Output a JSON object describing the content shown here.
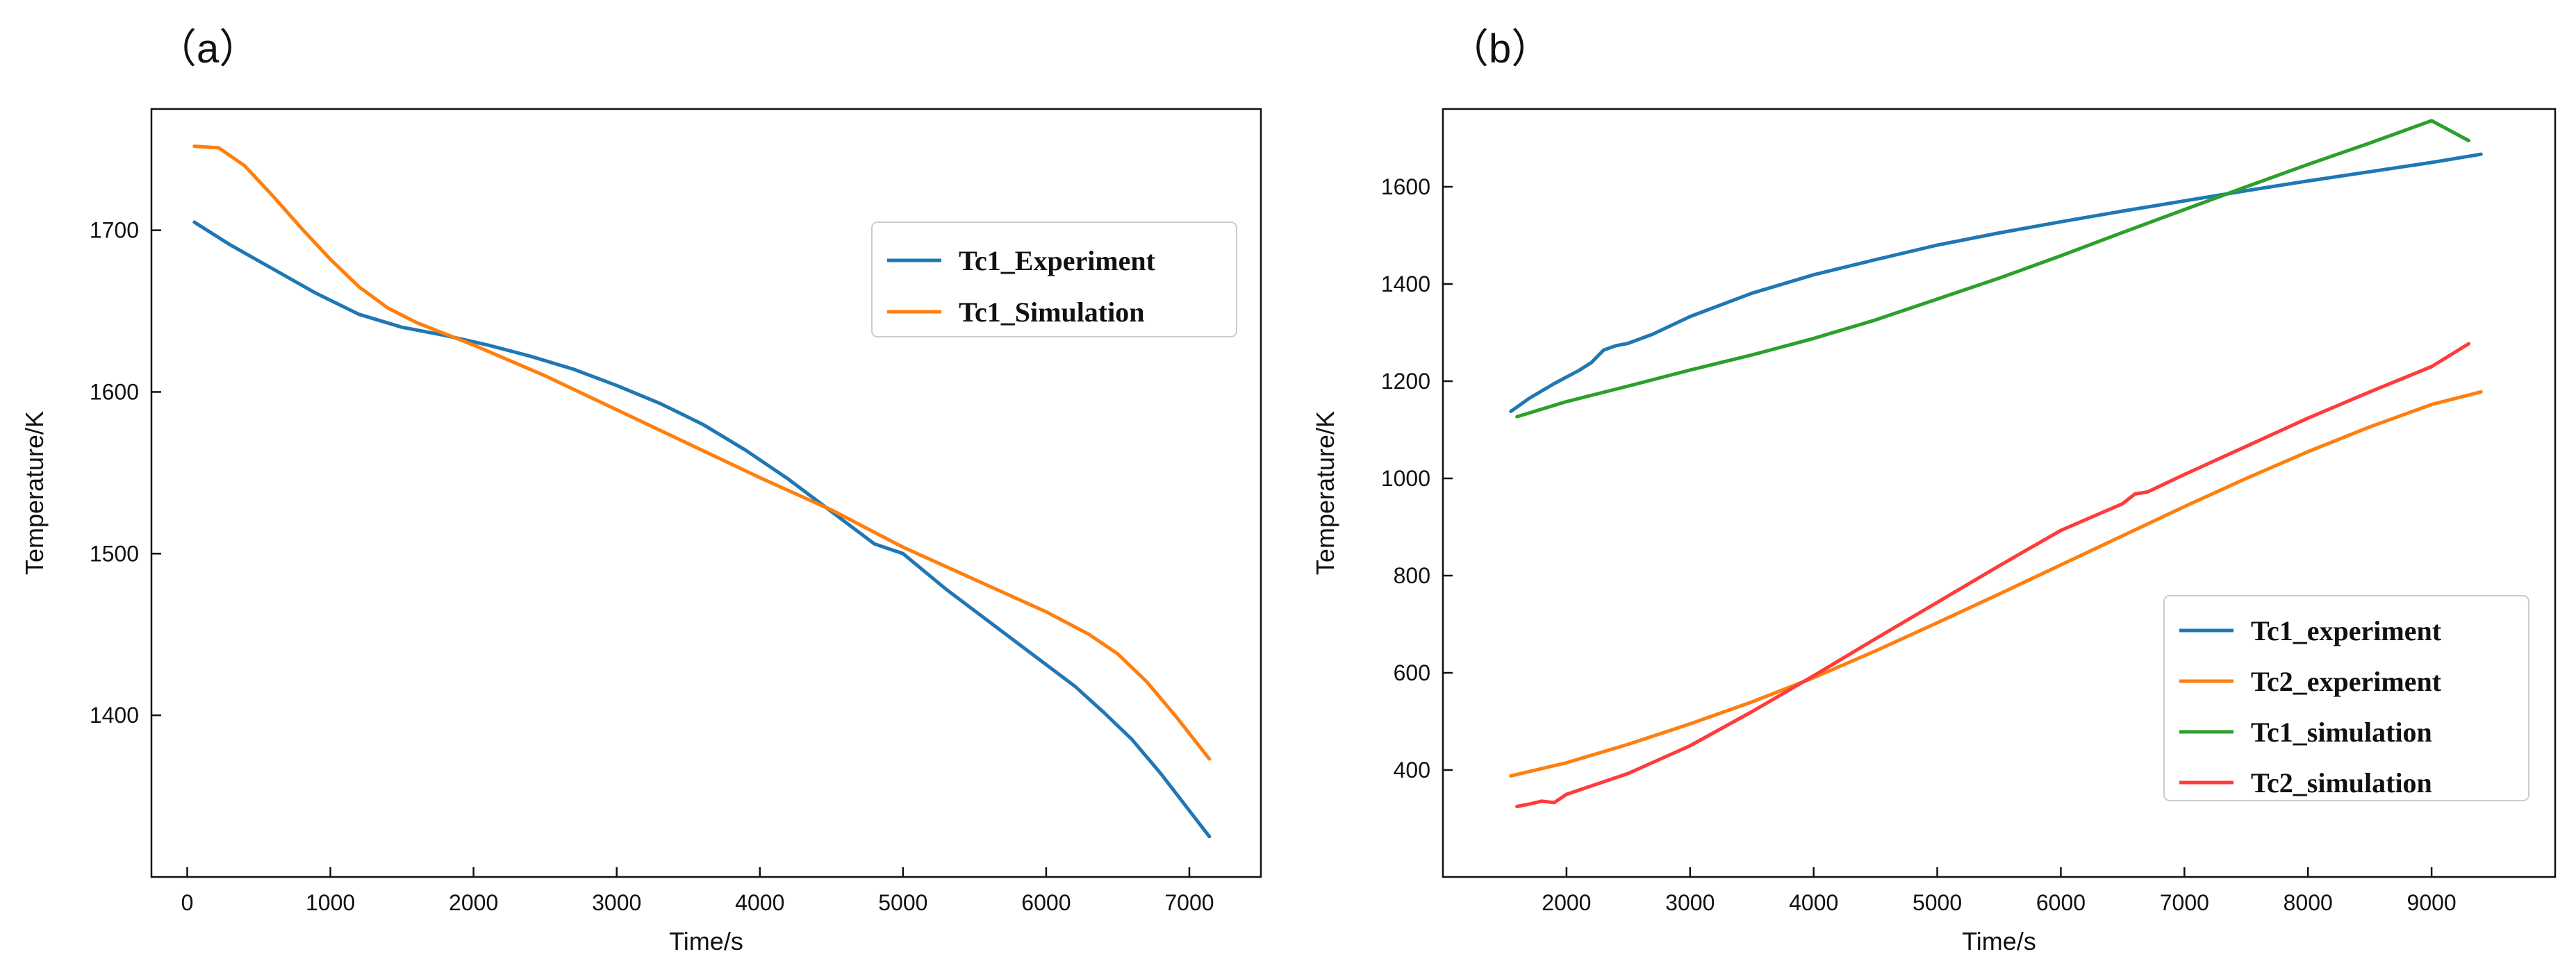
{
  "chart_data": [
    {
      "panel_label": "（a）",
      "type": "line",
      "title": "",
      "xlabel": "Time/s",
      "ylabel": "Temperature/K",
      "xlim": [
        -250,
        7500
      ],
      "ylim": [
        1300,
        1775
      ],
      "xticks": [
        0,
        1000,
        2000,
        3000,
        4000,
        5000,
        6000,
        7000
      ],
      "yticks": [
        1400,
        1500,
        1600,
        1700
      ],
      "legend_position": "upper-right",
      "series": [
        {
          "name": "Tc1_Experiment",
          "color": "#1f77b4",
          "points": [
            [
              50,
              1705
            ],
            [
              300,
              1691
            ],
            [
              600,
              1676
            ],
            [
              900,
              1661
            ],
            [
              1200,
              1648
            ],
            [
              1500,
              1640
            ],
            [
              1800,
              1635
            ],
            [
              2100,
              1629
            ],
            [
              2400,
              1622
            ],
            [
              2700,
              1614
            ],
            [
              3000,
              1604
            ],
            [
              3300,
              1593
            ],
            [
              3600,
              1580
            ],
            [
              3900,
              1564
            ],
            [
              4200,
              1546
            ],
            [
              4500,
              1526
            ],
            [
              4800,
              1506
            ],
            [
              5000,
              1500
            ],
            [
              5300,
              1478
            ],
            [
              5600,
              1458
            ],
            [
              5900,
              1438
            ],
            [
              6200,
              1418
            ],
            [
              6400,
              1402
            ],
            [
              6600,
              1385
            ],
            [
              6800,
              1364
            ],
            [
              7000,
              1341
            ],
            [
              7140,
              1325
            ]
          ]
        },
        {
          "name": "Tc1_Simulation",
          "color": "#ff7f0e",
          "points": [
            [
              50,
              1752
            ],
            [
              220,
              1751
            ],
            [
              400,
              1740
            ],
            [
              600,
              1721
            ],
            [
              800,
              1701
            ],
            [
              1000,
              1682
            ],
            [
              1200,
              1665
            ],
            [
              1400,
              1652
            ],
            [
              1600,
              1643
            ],
            [
              1800,
              1636
            ],
            [
              2000,
              1629
            ],
            [
              2500,
              1610
            ],
            [
              3000,
              1589
            ],
            [
              3500,
              1568
            ],
            [
              4000,
              1547
            ],
            [
              4500,
              1527
            ],
            [
              5000,
              1504
            ],
            [
              5500,
              1484
            ],
            [
              6000,
              1464
            ],
            [
              6300,
              1450
            ],
            [
              6500,
              1438
            ],
            [
              6700,
              1421
            ],
            [
              6900,
              1400
            ],
            [
              7140,
              1373
            ]
          ]
        }
      ]
    },
    {
      "panel_label": "（b）",
      "type": "line",
      "title": "",
      "xlabel": "Time/s",
      "ylabel": "Temperature/K",
      "xlim": [
        1000,
        10000
      ],
      "ylim": [
        180,
        1760
      ],
      "xticks": [
        2000,
        3000,
        4000,
        5000,
        6000,
        7000,
        8000,
        9000
      ],
      "yticks": [
        400,
        600,
        800,
        1000,
        1200,
        1400,
        1600
      ],
      "legend_position": "lower-right",
      "series": [
        {
          "name": "Tc1_experiment",
          "color": "#1f77b4",
          "points": [
            [
              1550,
              1138
            ],
            [
              1700,
              1165
            ],
            [
              1900,
              1195
            ],
            [
              2100,
              1222
            ],
            [
              2200,
              1238
            ],
            [
              2300,
              1264
            ],
            [
              2400,
              1273
            ],
            [
              2500,
              1278
            ],
            [
              2700,
              1297
            ],
            [
              3000,
              1333
            ],
            [
              3500,
              1381
            ],
            [
              4000,
              1419
            ],
            [
              4500,
              1450
            ],
            [
              5000,
              1480
            ],
            [
              5500,
              1505
            ],
            [
              6000,
              1528
            ],
            [
              6500,
              1550
            ],
            [
              7000,
              1571
            ],
            [
              7500,
              1592
            ],
            [
              8000,
              1612
            ],
            [
              8500,
              1631
            ],
            [
              9000,
              1650
            ],
            [
              9400,
              1667
            ]
          ]
        },
        {
          "name": "Tc2_experiment",
          "color": "#ff7f0e",
          "points": [
            [
              1550,
              388
            ],
            [
              2000,
              415
            ],
            [
              2500,
              453
            ],
            [
              3000,
              495
            ],
            [
              3500,
              540
            ],
            [
              4000,
              590
            ],
            [
              4500,
              645
            ],
            [
              5000,
              703
            ],
            [
              5500,
              762
            ],
            [
              6000,
              822
            ],
            [
              6500,
              882
            ],
            [
              7000,
              942
            ],
            [
              7500,
              1000
            ],
            [
              8000,
              1055
            ],
            [
              8500,
              1106
            ],
            [
              9000,
              1152
            ],
            [
              9400,
              1178
            ]
          ]
        },
        {
          "name": "Tc1_simulation",
          "color": "#2ca02c",
          "points": [
            [
              1600,
              1127
            ],
            [
              2000,
              1158
            ],
            [
              2500,
              1190
            ],
            [
              3000,
              1223
            ],
            [
              3500,
              1254
            ],
            [
              4000,
              1288
            ],
            [
              4500,
              1326
            ],
            [
              5000,
              1369
            ],
            [
              5500,
              1412
            ],
            [
              6000,
              1458
            ],
            [
              6500,
              1506
            ],
            [
              7000,
              1553
            ],
            [
              7500,
              1600
            ],
            [
              8000,
              1646
            ],
            [
              8500,
              1690
            ],
            [
              9000,
              1736
            ],
            [
              9300,
              1695
            ]
          ]
        },
        {
          "name": "Tc2_simulation",
          "color": "#ff3b3b",
          "points": [
            [
              1600,
              325
            ],
            [
              1700,
              330
            ],
            [
              1800,
              336
            ],
            [
              1900,
              333
            ],
            [
              2000,
              350
            ],
            [
              2500,
              393
            ],
            [
              3000,
              450
            ],
            [
              3500,
              520
            ],
            [
              4000,
              594
            ],
            [
              4500,
              670
            ],
            [
              5000,
              745
            ],
            [
              5500,
              820
            ],
            [
              6000,
              893
            ],
            [
              6500,
              948
            ],
            [
              6600,
              968
            ],
            [
              6700,
              972
            ],
            [
              7000,
              1008
            ],
            [
              7500,
              1066
            ],
            [
              8000,
              1124
            ],
            [
              8500,
              1178
            ],
            [
              9000,
              1230
            ],
            [
              9300,
              1277
            ]
          ]
        }
      ]
    }
  ]
}
